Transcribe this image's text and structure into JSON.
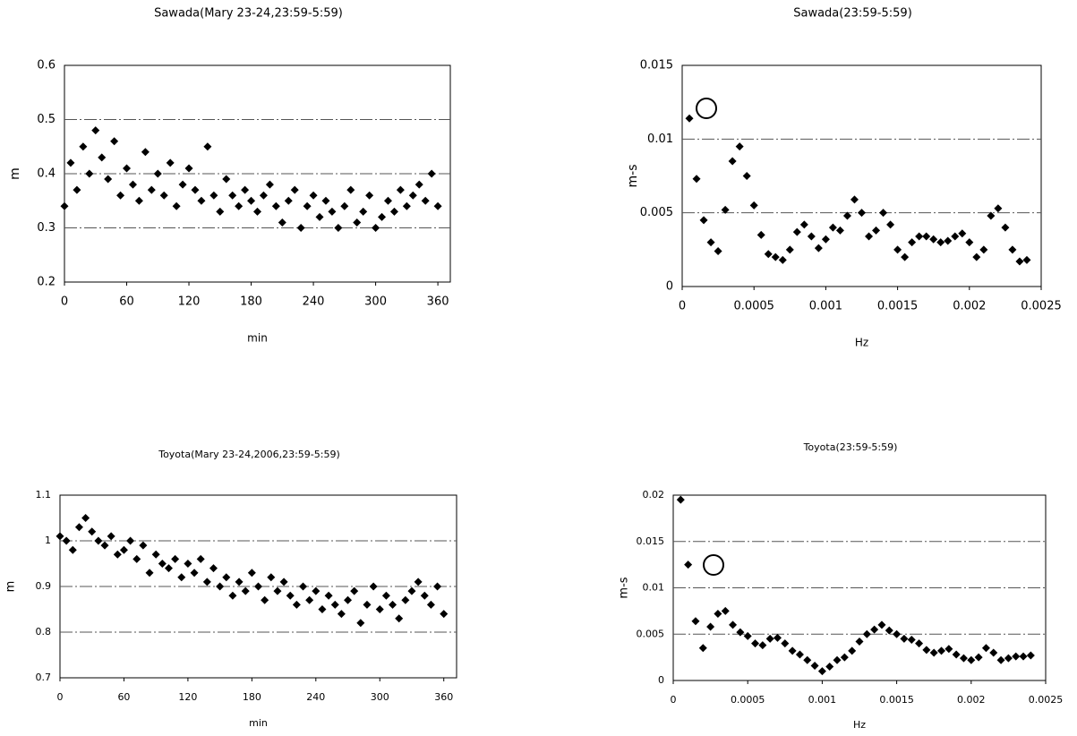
{
  "chart_data": [
    {
      "type": "scatter",
      "title": "Sawada(Mary 23-24,23:59-5:59)",
      "x_label": "min",
      "y_label": "m",
      "color": "#000000",
      "grid": true,
      "xlim": [
        0,
        372
      ],
      "ylim": [
        0.2,
        0.6
      ],
      "xticks": [
        0,
        60,
        120,
        180,
        240,
        300,
        360
      ],
      "yticks": [
        0.2,
        0.3,
        0.4,
        0.5,
        0.6
      ],
      "x": [
        0,
        6,
        12,
        18,
        24,
        30,
        36,
        42,
        48,
        54,
        60,
        66,
        72,
        78,
        84,
        90,
        96,
        102,
        108,
        114,
        120,
        126,
        132,
        138,
        144,
        150,
        156,
        162,
        168,
        174,
        180,
        186,
        192,
        198,
        204,
        210,
        216,
        222,
        228,
        234,
        240,
        246,
        252,
        258,
        264,
        270,
        276,
        282,
        288,
        294,
        300,
        306,
        312,
        318,
        324,
        330,
        336,
        342,
        348,
        354,
        360
      ],
      "values": [
        0.34,
        0.42,
        0.37,
        0.45,
        0.4,
        0.48,
        0.43,
        0.39,
        0.46,
        0.36,
        0.41,
        0.38,
        0.35,
        0.44,
        0.37,
        0.4,
        0.36,
        0.42,
        0.34,
        0.38,
        0.41,
        0.37,
        0.35,
        0.45,
        0.36,
        0.33,
        0.39,
        0.36,
        0.34,
        0.37,
        0.35,
        0.33,
        0.36,
        0.38,
        0.34,
        0.31,
        0.35,
        0.37,
        0.3,
        0.34,
        0.36,
        0.32,
        0.35,
        0.33,
        0.3,
        0.34,
        0.37,
        0.31,
        0.33,
        0.36,
        0.3,
        0.32,
        0.35,
        0.33,
        0.37,
        0.34,
        0.36,
        0.38,
        0.35,
        0.4,
        0.34
      ]
    },
    {
      "type": "scatter",
      "title": "Sawada(23:59-5:59)",
      "x_label": "Hz",
      "y_label": "m-s",
      "color": "#000000",
      "grid": true,
      "xlim": [
        0,
        0.0025
      ],
      "ylim": [
        0,
        0.015
      ],
      "xticks": [
        0,
        0.0005,
        0.001,
        0.0015,
        0.002,
        0.0025
      ],
      "yticks": [
        0,
        0.005,
        0.01,
        0.015
      ],
      "x": [
        5e-05,
        0.0001,
        0.00015,
        0.0002,
        0.00025,
        0.0003,
        0.00035,
        0.0004,
        0.00045,
        0.0005,
        0.00055,
        0.0006,
        0.00065,
        0.0007,
        0.00075,
        0.0008,
        0.00085,
        0.0009,
        0.00095,
        0.001,
        0.00105,
        0.0011,
        0.00115,
        0.0012,
        0.00125,
        0.0013,
        0.00135,
        0.0014,
        0.00145,
        0.0015,
        0.00155,
        0.0016,
        0.00165,
        0.0017,
        0.00175,
        0.0018,
        0.00185,
        0.0019,
        0.00195,
        0.002,
        0.00205,
        0.0021,
        0.00215,
        0.0022,
        0.00225,
        0.0023,
        0.00235,
        0.0024
      ],
      "values": [
        0.0114,
        0.0073,
        0.0045,
        0.003,
        0.0024,
        0.0052,
        0.0085,
        0.0095,
        0.0075,
        0.0055,
        0.0035,
        0.0022,
        0.002,
        0.0018,
        0.0025,
        0.0037,
        0.0042,
        0.0034,
        0.0026,
        0.0032,
        0.004,
        0.0038,
        0.0048,
        0.0059,
        0.005,
        0.0034,
        0.0038,
        0.005,
        0.0042,
        0.0025,
        0.002,
        0.003,
        0.0034,
        0.0034,
        0.0032,
        0.003,
        0.0031,
        0.0034,
        0.0036,
        0.003,
        0.002,
        0.0025,
        0.0048,
        0.0053,
        0.004,
        0.0025,
        0.0017,
        0.0018
      ]
    },
    {
      "type": "scatter",
      "title": "Toyota(Mary 23-24,2006,23:59-5:59)",
      "x_label": "min",
      "y_label": "m",
      "color": "#000000",
      "grid": true,
      "xlim": [
        0,
        372
      ],
      "ylim": [
        0.7,
        1.1
      ],
      "xticks": [
        0,
        60,
        120,
        180,
        240,
        300,
        360
      ],
      "yticks": [
        0.7,
        0.8,
        0.9,
        1,
        1.1
      ],
      "x": [
        0,
        6,
        12,
        18,
        24,
        30,
        36,
        42,
        48,
        54,
        60,
        66,
        72,
        78,
        84,
        90,
        96,
        102,
        108,
        114,
        120,
        126,
        132,
        138,
        144,
        150,
        156,
        162,
        168,
        174,
        180,
        186,
        192,
        198,
        204,
        210,
        216,
        222,
        228,
        234,
        240,
        246,
        252,
        258,
        264,
        270,
        276,
        282,
        288,
        294,
        300,
        306,
        312,
        318,
        324,
        330,
        336,
        342,
        348,
        354,
        360
      ],
      "values": [
        1.01,
        1.0,
        0.98,
        1.03,
        1.05,
        1.02,
        1.0,
        0.99,
        1.01,
        0.97,
        0.98,
        1.0,
        0.96,
        0.99,
        0.93,
        0.97,
        0.95,
        0.94,
        0.96,
        0.92,
        0.95,
        0.93,
        0.96,
        0.91,
        0.94,
        0.9,
        0.92,
        0.88,
        0.91,
        0.89,
        0.93,
        0.9,
        0.87,
        0.92,
        0.89,
        0.91,
        0.88,
        0.86,
        0.9,
        0.87,
        0.89,
        0.85,
        0.88,
        0.86,
        0.84,
        0.87,
        0.89,
        0.82,
        0.86,
        0.9,
        0.85,
        0.88,
        0.86,
        0.83,
        0.87,
        0.89,
        0.91,
        0.88,
        0.86,
        0.9,
        0.84
      ]
    },
    {
      "type": "scatter",
      "title": "Toyota(23:59-5:59)",
      "x_label": "Hz",
      "y_label": "m-s",
      "color": "#000000",
      "grid": true,
      "xlim": [
        0,
        0.0025
      ],
      "ylim": [
        0,
        0.02
      ],
      "xticks": [
        0,
        0.0005,
        0.001,
        0.0015,
        0.002,
        0.0025
      ],
      "yticks": [
        0,
        0.005,
        0.01,
        0.015,
        0.02
      ],
      "x": [
        5e-05,
        0.0001,
        0.00015,
        0.0002,
        0.00025,
        0.0003,
        0.00035,
        0.0004,
        0.00045,
        0.0005,
        0.00055,
        0.0006,
        0.00065,
        0.0007,
        0.00075,
        0.0008,
        0.00085,
        0.0009,
        0.00095,
        0.001,
        0.00105,
        0.0011,
        0.00115,
        0.0012,
        0.00125,
        0.0013,
        0.00135,
        0.0014,
        0.00145,
        0.0015,
        0.00155,
        0.0016,
        0.00165,
        0.0017,
        0.00175,
        0.0018,
        0.00185,
        0.0019,
        0.00195,
        0.002,
        0.00205,
        0.0021,
        0.00215,
        0.0022,
        0.00225,
        0.0023,
        0.00235,
        0.0024
      ],
      "values": [
        0.0195,
        0.0125,
        0.0064,
        0.0035,
        0.0058,
        0.0072,
        0.0075,
        0.006,
        0.0052,
        0.0048,
        0.004,
        0.0038,
        0.0045,
        0.0046,
        0.004,
        0.0032,
        0.0028,
        0.0022,
        0.0016,
        0.001,
        0.0015,
        0.0022,
        0.0025,
        0.0032,
        0.0042,
        0.005,
        0.0055,
        0.006,
        0.0054,
        0.005,
        0.0045,
        0.0044,
        0.004,
        0.0033,
        0.003,
        0.0032,
        0.0034,
        0.0028,
        0.0024,
        0.0022,
        0.0025,
        0.0035,
        0.003,
        0.0022,
        0.0024,
        0.0026,
        0.0026,
        0.0027
      ]
    }
  ]
}
